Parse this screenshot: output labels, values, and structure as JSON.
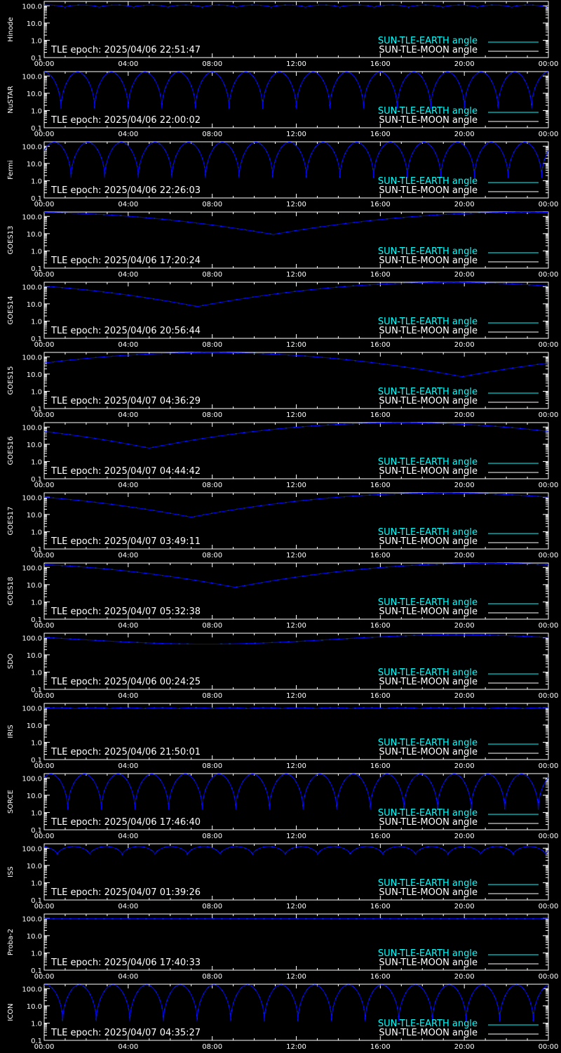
{
  "chart_data": {
    "type": "line",
    "y_scale": "log",
    "ylim": [
      0.1,
      180
    ],
    "y_ticks": [
      {
        "value": 100,
        "label": "100.0"
      },
      {
        "value": 10,
        "label": "10.0"
      },
      {
        "value": 1,
        "label": "1.0"
      },
      {
        "value": 0.1,
        "label": "0.1"
      }
    ],
    "x_range_hours": [
      0,
      24
    ],
    "x_ticks": [
      {
        "hour": 0,
        "label": "00:00"
      },
      {
        "hour": 4,
        "label": "04:00"
      },
      {
        "hour": 8,
        "label": "08:00"
      },
      {
        "hour": 12,
        "label": "12:00"
      },
      {
        "hour": 16,
        "label": "16:00"
      },
      {
        "hour": 20,
        "label": "20:00"
      },
      {
        "hour": 24,
        "label": "00:00"
      }
    ],
    "legend": {
      "placement": "bottom-right",
      "earth": {
        "label": "SUN-TLE-EARTH angle",
        "color": "#00ffff"
      },
      "moon": {
        "label": "SUN-TLE-MOON angle",
        "color": "#ffffff"
      }
    },
    "line_color": "#0000ff",
    "axis_color": "#ffffff",
    "panels": [
      {
        "name": "Hinode",
        "epoch": "TLE epoch: 2025/04/06 22:51:47",
        "pattern": "orbit",
        "period_h": 1.636,
        "phase": 0.4,
        "max": 110,
        "min": 80
      },
      {
        "name": "NuSTAR",
        "epoch": "TLE epoch: 2025/04/06 22:00:02",
        "pattern": "orbit",
        "period_h": 1.6,
        "phase": 0.5,
        "max": 170,
        "min": 1.3
      },
      {
        "name": "Fermi",
        "epoch": "TLE epoch: 2025/04/06 22:26:03",
        "pattern": "orbit",
        "period_h": 1.6,
        "phase": 0.2,
        "max": 170,
        "min": 1.5
      },
      {
        "name": "GOES13",
        "epoch": "TLE epoch: 2025/04/06 17:20:24",
        "pattern": "geo",
        "min_hour": 10.9,
        "max": 175,
        "min": 9
      },
      {
        "name": "GOES14",
        "epoch": "TLE epoch: 2025/04/06 20:56:44",
        "pattern": "geo",
        "min_hour": 7.3,
        "max": 175,
        "min": 7
      },
      {
        "name": "GOES15",
        "epoch": "TLE epoch: 2025/04/07 04:36:29",
        "pattern": "geo",
        "min_hour": 19.9,
        "max": 175,
        "min": 7
      },
      {
        "name": "GOES16",
        "epoch": "TLE epoch: 2025/04/07 04:44:42",
        "pattern": "geo",
        "min_hour": 5.0,
        "max": 175,
        "min": 6
      },
      {
        "name": "GOES17",
        "epoch": "TLE epoch: 2025/04/07 03:49:11",
        "pattern": "geo",
        "min_hour": 7.0,
        "max": 175,
        "min": 7
      },
      {
        "name": "GOES18",
        "epoch": "TLE epoch: 2025/04/07 05:32:38",
        "pattern": "geo",
        "min_hour": 9.1,
        "max": 175,
        "min": 7
      },
      {
        "name": "SDO",
        "epoch": "TLE epoch: 2025/04/06 00:24:25",
        "pattern": "sdo",
        "min_hour": 7.7,
        "max": 145,
        "min": 42
      },
      {
        "name": "IRIS",
        "epoch": "TLE epoch: 2025/04/06 21:50:01",
        "pattern": "orbit",
        "period_h": 1.64,
        "phase": 0.1,
        "max": 100,
        "min": 88
      },
      {
        "name": "SORCE",
        "epoch": "TLE epoch: 2025/04/06 17:46:40",
        "pattern": "orbit",
        "period_h": 1.6,
        "phase": 0.3,
        "max": 170,
        "min": 1.5
      },
      {
        "name": "ISS",
        "epoch": "TLE epoch: 2025/04/07 01:39:26",
        "pattern": "orbit",
        "period_h": 1.55,
        "phase": 0.6,
        "max": 125,
        "min": 40
      },
      {
        "name": "Proba-2",
        "epoch": "TLE epoch: 2025/04/06 17:40:33",
        "pattern": "flat",
        "value": 95
      },
      {
        "name": "ICON",
        "epoch": "TLE epoch: 2025/04/07 04:35:27",
        "pattern": "orbit",
        "period_h": 1.6,
        "phase": 0.45,
        "max": 165,
        "min": 1.3
      }
    ]
  }
}
